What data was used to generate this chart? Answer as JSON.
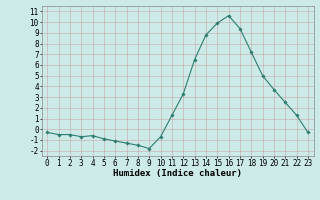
{
  "x": [
    0,
    1,
    2,
    3,
    4,
    5,
    6,
    7,
    8,
    9,
    10,
    11,
    12,
    13,
    14,
    15,
    16,
    17,
    18,
    19,
    20,
    21,
    22,
    23
  ],
  "y": [
    -0.3,
    -0.5,
    -0.5,
    -0.7,
    -0.6,
    -0.9,
    -1.1,
    -1.3,
    -1.5,
    -1.8,
    -0.7,
    1.3,
    3.3,
    6.5,
    8.8,
    9.9,
    10.6,
    9.4,
    7.2,
    5.0,
    3.7,
    2.5,
    1.3,
    -0.3
  ],
  "line_color": "#2e7d6e",
  "marker": "D",
  "markersize": 1.8,
  "linewidth": 0.8,
  "bg_color": "#cceae8",
  "grid_color": "#b0d8d5",
  "xlim": [
    -0.5,
    23.5
  ],
  "ylim": [
    -2.5,
    11.5
  ],
  "xticks": [
    0,
    1,
    2,
    3,
    4,
    5,
    6,
    7,
    8,
    9,
    10,
    11,
    12,
    13,
    14,
    15,
    16,
    17,
    18,
    19,
    20,
    21,
    22,
    23
  ],
  "yticks": [
    -2,
    -1,
    0,
    1,
    2,
    3,
    4,
    5,
    6,
    7,
    8,
    9,
    10,
    11
  ],
  "xlabel": "Humidex (Indice chaleur)",
  "xlabel_fontsize": 6.5,
  "tick_fontsize": 5.5
}
